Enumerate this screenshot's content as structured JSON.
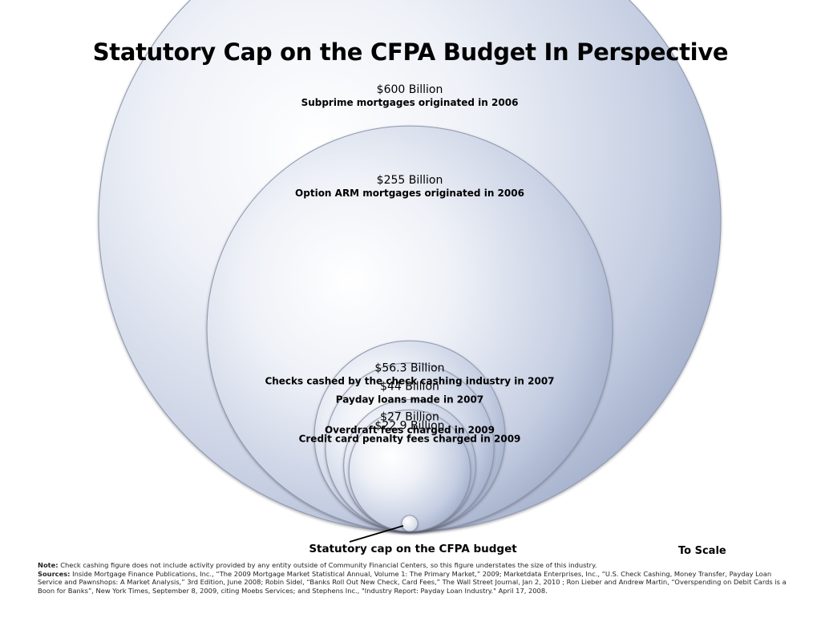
{
  "title": "Statutory Cap on the CFPA Budget In Perspective",
  "scale_note": "To Scale",
  "chart_data": {
    "type": "bubble",
    "title": "Statutory Cap on the CFPA Budget In Perspective",
    "unit": "Billion",
    "items": [
      {
        "value": 600,
        "value_label": "$600 Billion",
        "description": "Subprime mortgages originated in 2006"
      },
      {
        "value": 255,
        "value_label": "$255 Billion",
        "description": "Option ARM mortgages originated in 2006"
      },
      {
        "value": 56.3,
        "value_label": "$56.3 Billion",
        "description": "Checks cashed by the check cashing industry in 2007"
      },
      {
        "value": 44,
        "value_label": "$44 Billion",
        "description": "Payday loans made in 2007"
      },
      {
        "value": 27,
        "value_label": "$27 Billion",
        "description": "Overdraft fees charged in 2009"
      },
      {
        "value": 22.9,
        "value_label": "$22.9 Billion",
        "description": "Credit card penalty fees charged in 2009"
      },
      {
        "value": 0.4,
        "value_label": "",
        "description": "Statutory cap on the CFPA budget"
      }
    ],
    "callout": "Statutory cap on the CFPA budget",
    "scale_note": "To Scale"
  },
  "notes": {
    "note_label": "Note:",
    "note_text": "Check cashing figure does not include activity provided by any entity outside of Community Financial Centers, so this figure understates the size of this industry.",
    "sources_label": "Sources:",
    "sources_text": "Inside Mortgage Finance Publications, Inc., “The 2009 Mortgage Market Statistical Annual, Volume 1: The Primary Market,” 2009; Marketdata Enterprises, Inc., “U.S. Check Cashing, Money Transfer, Payday Loan Service and Pawnshops: A Market Analysis,” 3rd Edition, June 2008; Robin Sidel, “Banks Roll Out New Check, Card Fees,” The Wall Street Journal, Jan 2, 2010 ; Ron Lieber and Andrew Martin, “Overspending on Debit Cards is a Boon for Banks”, New York Times, September 8, 2009, citing Moebs Services; and Stephens Inc., \"Industry Report: Payday Loan Industry.\" April 17, 2008."
  }
}
